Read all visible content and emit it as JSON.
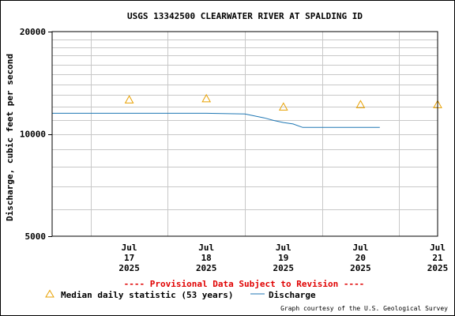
{
  "chart_data": {
    "type": "line",
    "title": "USGS 13342500 CLEARWATER RIVER AT SPALDING ID",
    "ylabel": "Discharge, cubic feet per second",
    "xlabel": "",
    "y_scale": "log",
    "ylim": [
      5000,
      20000
    ],
    "y_tick_labels": [
      "20000",
      "10000",
      "5000"
    ],
    "xlim": [
      "2025-07-16 12:00",
      "2025-07-21 12:00"
    ],
    "x_tick_labels": [
      {
        "month": "Jul",
        "day": "17",
        "year": "2025"
      },
      {
        "month": "Jul",
        "day": "18",
        "year": "2025"
      },
      {
        "month": "Jul",
        "day": "19",
        "year": "2025"
      },
      {
        "month": "Jul",
        "day": "20",
        "year": "2025"
      },
      {
        "month": "Jul",
        "day": "21",
        "year": "2025"
      }
    ],
    "grid": true,
    "legend_position": "bottom",
    "series": [
      {
        "name": "Discharge",
        "color": "#1f77b4",
        "x": [
          "2025-07-16 12:00",
          "2025-07-17 00:00",
          "2025-07-17 12:00",
          "2025-07-18 00:00",
          "2025-07-18 12:00",
          "2025-07-19 00:00",
          "2025-07-19 03:00",
          "2025-07-19 06:00",
          "2025-07-19 09:00",
          "2025-07-19 12:00",
          "2025-07-19 15:00",
          "2025-07-19 18:00",
          "2025-07-20 00:00",
          "2025-07-20 12:00",
          "2025-07-20 18:00"
        ],
        "y": [
          11500,
          11500,
          11500,
          11500,
          11500,
          11450,
          11300,
          11150,
          10950,
          10800,
          10700,
          10450,
          10450,
          10450,
          10450
        ]
      },
      {
        "name": "Median daily statistic (53 years)",
        "marker": "triangle",
        "color": "#e8a000",
        "x": [
          "2025-07-17",
          "2025-07-18",
          "2025-07-19",
          "2025-07-20",
          "2025-07-21"
        ],
        "y": [
          12600,
          12700,
          12000,
          12200,
          12200
        ]
      }
    ]
  },
  "provisional_notice": "---- Provisional Data Subject to Revision ----",
  "legend": {
    "median_label": "Median daily statistic (53 years)",
    "discharge_label": "Discharge"
  },
  "credit": "Graph courtesy of the U.S. Geological Survey",
  "colors": {
    "notice": "#e00000",
    "discharge": "#1f77b4",
    "median_marker": "#e8a000",
    "grid": "#c8c8c8"
  }
}
